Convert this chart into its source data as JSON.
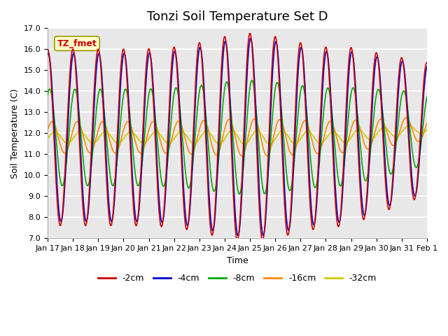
{
  "title": "Tonzi Soil Temperature Set D",
  "xlabel": "Time",
  "ylabel": "Soil Temperature (C)",
  "ylim": [
    7.0,
    17.0
  ],
  "yticks": [
    7.0,
    8.0,
    9.0,
    10.0,
    11.0,
    12.0,
    13.0,
    14.0,
    15.0,
    16.0,
    17.0
  ],
  "colors": {
    "-2cm": "#cc0000",
    "-4cm": "#0000cc",
    "-8cm": "#00aa00",
    "-16cm": "#ff8800",
    "-32cm": "#cccc00"
  },
  "legend_labels": [
    "-2cm",
    "-4cm",
    "-8cm",
    "-16cm",
    "-32cm"
  ],
  "xtick_labels": [
    "Jan 17",
    "Jan 18",
    "Jan 19",
    "Jan 20",
    "Jan 21",
    "Jan 22",
    "Jan 23",
    "Jan 24",
    "Jan 25",
    "Jan 26",
    "Jan 27",
    "Jan 28",
    "Jan 29",
    "Jan 30",
    "Jan 31",
    "Feb 1"
  ],
  "annotation_text": "TZ_fmet",
  "annotation_color": "#cc0000",
  "annotation_bg": "#ffffcc",
  "bg_color": "#e8e8e8",
  "grid_color": "#ffffff",
  "title_fontsize": 13,
  "label_fontsize": 9,
  "tick_fontsize": 8
}
